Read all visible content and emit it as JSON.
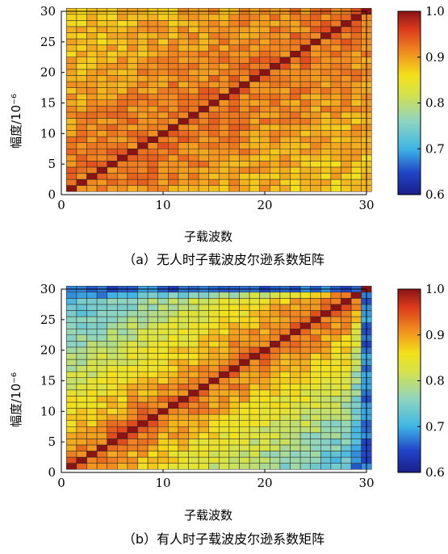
{
  "chart_data": [
    {
      "type": "heatmap",
      "caption": "（a）无人时子载波皮尔逊系数矩阵",
      "xlabel": "子载波数",
      "ylabel": "幅度/10⁻⁶",
      "x_ticks": [
        "0",
        "10",
        "20",
        "30"
      ],
      "y_ticks": [
        "0",
        "5",
        "10",
        "15",
        "20",
        "25",
        "30"
      ],
      "xlim": [
        0,
        30
      ],
      "ylim": [
        0,
        30
      ],
      "grid_size": 30,
      "colormap": "jet",
      "colorbar": {
        "min": 0.6,
        "max": 1.0,
        "ticks": [
          "0.6",
          "0.7",
          "0.8",
          "0.9",
          "1.0"
        ]
      },
      "diagonal_value": 1.0,
      "near_diagonal_value": 0.93,
      "far_off_diagonal_value": 0.87,
      "value_trend": "correlation decreases slowly with distance from diagonal; most cells between 0.85 and 0.95"
    },
    {
      "type": "heatmap",
      "caption": "（b）有人时子载波皮尔逊系数矩阵",
      "xlabel": "子载波数",
      "ylabel": "幅度/10⁻⁶",
      "x_ticks": [
        "0",
        "10",
        "20",
        "30"
      ],
      "y_ticks": [
        "0",
        "5",
        "10",
        "15",
        "20",
        "25",
        "30"
      ],
      "xlim": [
        0,
        30
      ],
      "ylim": [
        0,
        30
      ],
      "grid_size": 30,
      "colormap": "jet",
      "colorbar": {
        "min": 0.6,
        "max": 1.0,
        "ticks": [
          "0.6",
          "0.7",
          "0.8",
          "0.9",
          "1.0"
        ]
      },
      "diagonal_value": 1.0,
      "near_diagonal_value": 0.94,
      "far_off_diagonal_value": 0.7,
      "value_trend": "correlation decreases strongly with distance from diagonal; corners near 0.65-0.75, last subcarrier near 0.65"
    }
  ]
}
